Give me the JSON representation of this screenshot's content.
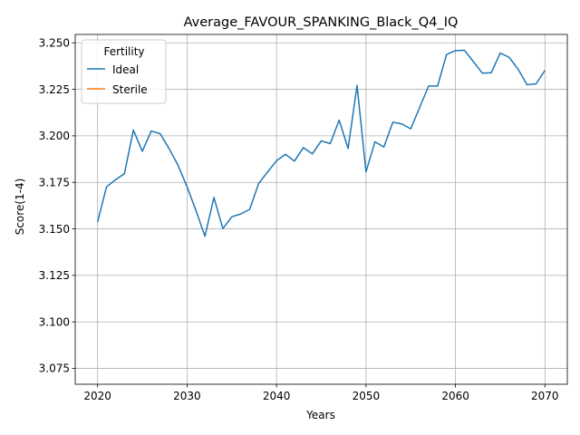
{
  "chart_data": {
    "type": "line",
    "title": "Average_FAVOUR_SPANKING_Black_Q4_IQ",
    "xlabel": "Years",
    "ylabel": "Score(1-4)",
    "xlim": [
      2017.5,
      2072.5
    ],
    "ylim": [
      3.0665,
      3.2545
    ],
    "xticks": [
      2020,
      2030,
      2040,
      2050,
      2060,
      2070
    ],
    "xtick_labels": [
      "2020",
      "2030",
      "2040",
      "2050",
      "2060",
      "2070"
    ],
    "yticks": [
      3.075,
      3.1,
      3.125,
      3.15,
      3.175,
      3.2,
      3.225,
      3.25
    ],
    "ytick_labels": [
      "3.075",
      "3.100",
      "3.125",
      "3.150",
      "3.175",
      "3.200",
      "3.225",
      "3.250"
    ],
    "grid": true,
    "legend": {
      "title": "Fertility",
      "placement": "upper-left"
    },
    "series": [
      {
        "name": "Ideal",
        "color": "#1f77b4",
        "x": [
          2020,
          2021,
          2022,
          2023,
          2024,
          2025,
          2026,
          2027,
          2028,
          2029,
          2030,
          2031,
          2032,
          2033,
          2034,
          2035,
          2036,
          2037,
          2038,
          2039,
          2040,
          2041,
          2042,
          2043,
          2044,
          2045,
          2046,
          2047,
          2048,
          2049,
          2050,
          2051,
          2052,
          2053,
          2054,
          2055,
          2056,
          2057,
          2058,
          2059,
          2060,
          2061,
          2062,
          2063,
          2064,
          2065,
          2066,
          2067,
          2068,
          2069,
          2070
        ],
        "values": [
          3.1538,
          3.1726,
          3.1764,
          3.1797,
          3.2031,
          3.1917,
          3.2026,
          3.2011,
          3.1931,
          3.1841,
          3.1726,
          3.1598,
          3.146,
          3.1669,
          3.1501,
          3.1565,
          3.158,
          3.1605,
          3.1744,
          3.1806,
          3.1866,
          3.1901,
          3.1864,
          3.1937,
          3.1903,
          3.1973,
          3.1958,
          3.2084,
          3.1932,
          3.2271,
          3.1807,
          3.1968,
          3.194,
          3.2073,
          3.2064,
          3.2038,
          3.2153,
          3.2268,
          3.2268,
          3.2437,
          3.2458,
          3.246,
          3.2399,
          3.2337,
          3.2339,
          3.2445,
          3.2422,
          3.2358,
          3.2275,
          3.2279,
          3.2352
        ]
      },
      {
        "name": "Sterile",
        "color": "#ff7f0e",
        "x": [],
        "values": []
      }
    ]
  }
}
